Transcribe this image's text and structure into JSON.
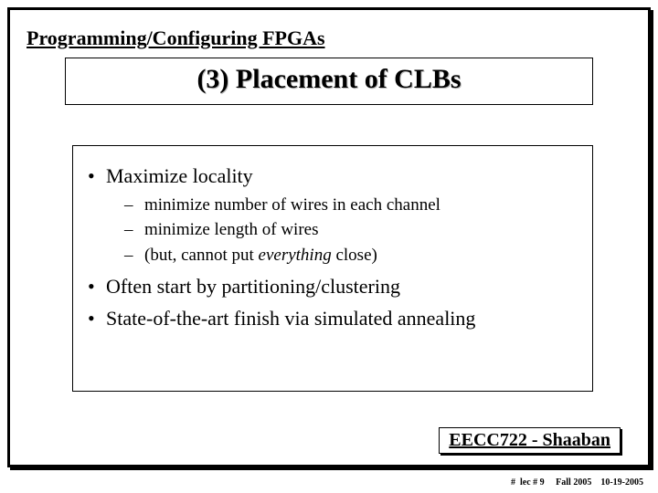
{
  "section_label": "Programming/Configuring FPGAs",
  "title": "(3) Placement of CLBs",
  "bullets": {
    "b1": "Maximize locality",
    "b1a": "minimize number of wires in each channel",
    "b1b": "minimize length of wires",
    "b1c_prefix": "(but, cannot put ",
    "b1c_em": "everything",
    "b1c_suffix": " close)",
    "b2": "Often start by partitioning/clustering",
    "b3": "State-of-the-art finish via simulated annealing"
  },
  "footer": "EECC722 - Shaaban",
  "subfooter": "#  lec # 9     Fall 2005    10-19-2005"
}
